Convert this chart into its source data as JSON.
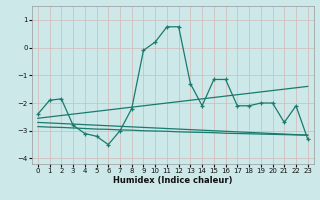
{
  "title": "",
  "xlabel": "Humidex (Indice chaleur)",
  "bg_color": "#cce8e8",
  "line_color": "#1a7a6e",
  "grid_color": "#b8d8d8",
  "xlim": [
    -0.5,
    23.5
  ],
  "ylim": [
    -4.2,
    1.5
  ],
  "yticks": [
    1,
    0,
    -1,
    -2,
    -3,
    -4
  ],
  "xticks": [
    0,
    1,
    2,
    3,
    4,
    5,
    6,
    7,
    8,
    9,
    10,
    11,
    12,
    13,
    14,
    15,
    16,
    17,
    18,
    19,
    20,
    21,
    22,
    23
  ],
  "line1_x": [
    0,
    1,
    2,
    3,
    4,
    5,
    6,
    7,
    8,
    9,
    10,
    11,
    12,
    13,
    14,
    15,
    16,
    17,
    18,
    19,
    20,
    21,
    22,
    23
  ],
  "line1_y": [
    -2.4,
    -1.9,
    -1.85,
    -2.8,
    -3.1,
    -3.2,
    -3.5,
    -3.0,
    -2.2,
    -0.1,
    0.2,
    0.75,
    0.75,
    -1.3,
    -2.1,
    -1.15,
    -1.15,
    -2.1,
    -2.1,
    -2.0,
    -2.0,
    -2.7,
    -2.1,
    -3.3
  ],
  "line2_x": [
    0,
    1,
    2,
    3,
    4,
    5,
    6,
    7,
    8,
    9,
    10,
    11,
    12,
    13,
    14,
    15,
    16,
    17,
    18,
    19,
    20,
    21,
    22,
    23
  ],
  "line2_y": [
    -2.55,
    -2.5,
    -2.45,
    -2.4,
    -2.35,
    -2.3,
    -2.25,
    -2.2,
    -2.15,
    -2.1,
    -2.05,
    -2.0,
    -1.95,
    -1.9,
    -1.85,
    -1.8,
    -1.75,
    -1.7,
    -1.65,
    -1.6,
    -1.55,
    -1.5,
    -1.45,
    -1.4
  ],
  "line3_x": [
    0,
    1,
    2,
    3,
    4,
    5,
    6,
    7,
    8,
    9,
    10,
    11,
    12,
    13,
    14,
    15,
    16,
    17,
    18,
    19,
    20,
    21,
    22,
    23
  ],
  "line3_y": [
    -2.85,
    -2.87,
    -2.88,
    -2.9,
    -2.92,
    -2.94,
    -2.95,
    -2.97,
    -2.98,
    -3.0,
    -3.01,
    -3.02,
    -3.04,
    -3.05,
    -3.06,
    -3.07,
    -3.09,
    -3.1,
    -3.11,
    -3.12,
    -3.13,
    -3.14,
    -3.15,
    -3.16
  ],
  "line4_x": [
    0,
    1,
    2,
    3,
    4,
    5,
    6,
    7,
    8,
    9,
    10,
    11,
    12,
    13,
    14,
    15,
    16,
    17,
    18,
    19,
    20,
    21,
    22,
    23
  ],
  "line4_y": [
    -2.7,
    -2.72,
    -2.74,
    -2.76,
    -2.78,
    -2.8,
    -2.82,
    -2.84,
    -2.86,
    -2.88,
    -2.9,
    -2.92,
    -2.94,
    -2.96,
    -2.98,
    -3.0,
    -3.02,
    -3.04,
    -3.06,
    -3.08,
    -3.1,
    -3.12,
    -3.14,
    -3.16
  ]
}
